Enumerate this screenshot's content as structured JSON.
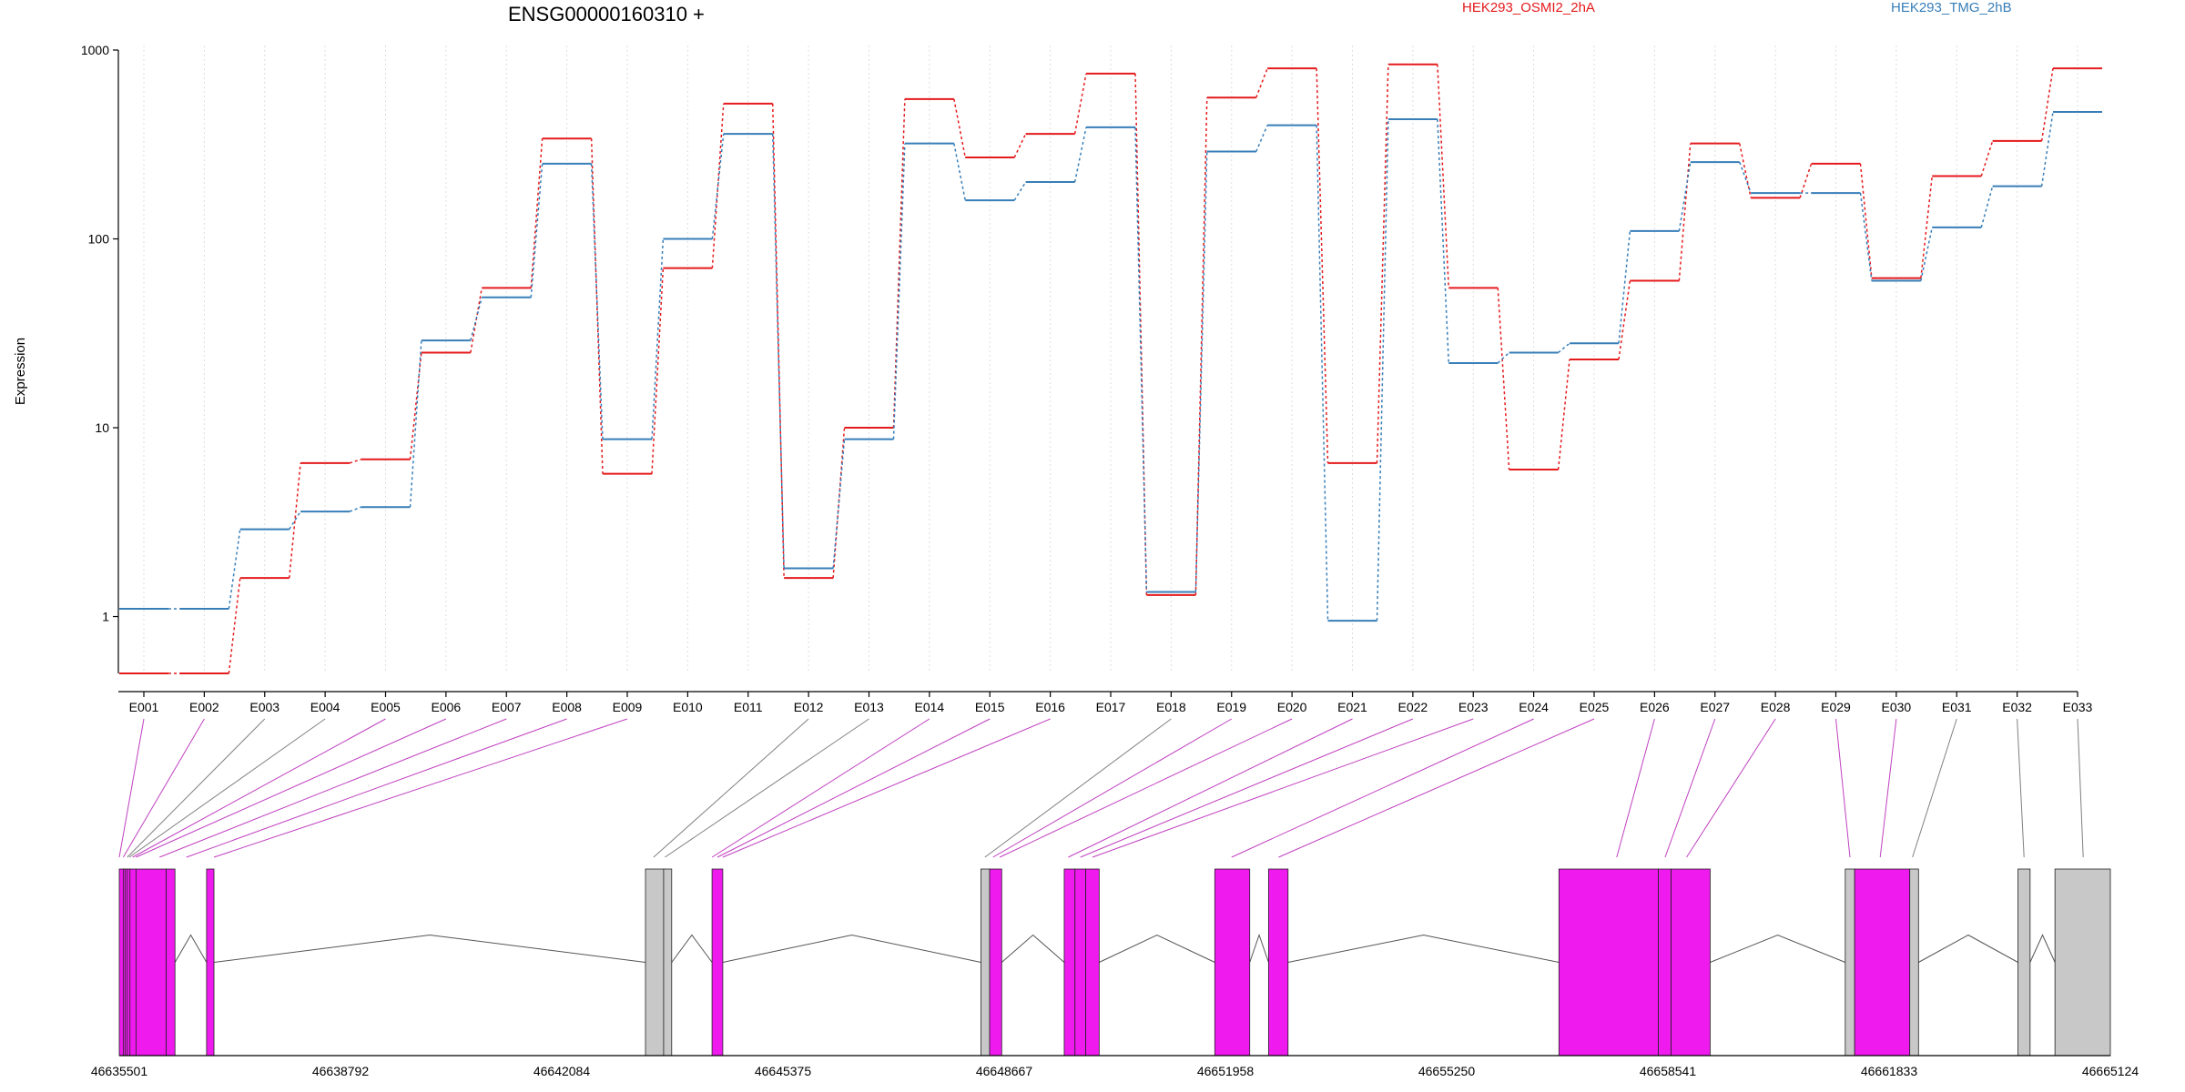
{
  "chart_data": {
    "type": "line",
    "title": "ENSG00000160310 +",
    "ylabel": "Expression",
    "xlabel": "",
    "yscale": "log",
    "ylim": [
      0.5,
      1000
    ],
    "y_ticks": [
      1,
      10,
      100,
      1000
    ],
    "y_tick_labels": [
      "1",
      "10",
      "100",
      "1000"
    ],
    "grid": "vertical dotted",
    "legend_placement": "top",
    "categories": [
      "E001",
      "E002",
      "E003",
      "E004",
      "E005",
      "E006",
      "E007",
      "E008",
      "E009",
      "E010",
      "E011",
      "E012",
      "E013",
      "E014",
      "E015",
      "E016",
      "E017",
      "E018",
      "E019",
      "E020",
      "E021",
      "E022",
      "E023",
      "E024",
      "E025",
      "E026",
      "E027",
      "E028",
      "E029",
      "E030",
      "E031",
      "E032",
      "E033"
    ],
    "series": [
      {
        "name": "HEK293_OSMI2_2hA",
        "color": "#e41a1c",
        "values": [
          0.5,
          0.5,
          1.6,
          6.5,
          6.8,
          25,
          55,
          340,
          5.7,
          70,
          520,
          1.6,
          10,
          550,
          270,
          360,
          750,
          1.3,
          560,
          800,
          6.5,
          840,
          55,
          6,
          23,
          60,
          320,
          165,
          250,
          62,
          215,
          330,
          800
        ]
      },
      {
        "name": "HEK293_TMG_2hB",
        "color": "#377eb8",
        "values": [
          1.1,
          1.1,
          2.9,
          3.6,
          3.8,
          29,
          49,
          250,
          8.7,
          100,
          360,
          1.8,
          8.7,
          320,
          160,
          200,
          390,
          1.35,
          290,
          400,
          0.95,
          430,
          22,
          25,
          28,
          110,
          255,
          175,
          175,
          60,
          115,
          190,
          470
        ]
      }
    ]
  },
  "gene_model": {
    "coordinate_labels": [
      "46635501",
      "46638792",
      "46642084",
      "46645375",
      "46648667",
      "46651958",
      "46655250",
      "46658541",
      "46661833",
      "46665124"
    ],
    "coordinate_range": [
      46635501,
      46665124
    ],
    "colors": {
      "highlighted_exon": "#ee1aee",
      "other_exon": "#c8c8c8",
      "connector_highlight": "#c040c0",
      "connector_plain": "#808080"
    },
    "exons": [
      {
        "start": 46635501,
        "end": 46635750,
        "kind": "highlighted"
      },
      {
        "start": 46635560,
        "end": 46635580,
        "kind": "highlighted"
      },
      {
        "start": 46635620,
        "end": 46635660,
        "kind": "highlighted"
      },
      {
        "start": 46635750,
        "end": 46636200,
        "kind": "highlighted"
      },
      {
        "start": 46636200,
        "end": 46636330,
        "kind": "highlighted"
      },
      {
        "start": 46636800,
        "end": 46636910,
        "kind": "highlighted"
      },
      {
        "start": 46643330,
        "end": 46643600,
        "kind": "other"
      },
      {
        "start": 46643600,
        "end": 46643720,
        "kind": "other"
      },
      {
        "start": 46644320,
        "end": 46644480,
        "kind": "highlighted"
      },
      {
        "start": 46648320,
        "end": 46648450,
        "kind": "other"
      },
      {
        "start": 46648450,
        "end": 46648630,
        "kind": "highlighted"
      },
      {
        "start": 46649560,
        "end": 46649720,
        "kind": "highlighted"
      },
      {
        "start": 46649720,
        "end": 46649880,
        "kind": "highlighted"
      },
      {
        "start": 46649880,
        "end": 46650080,
        "kind": "highlighted"
      },
      {
        "start": 46651800,
        "end": 46652320,
        "kind": "highlighted"
      },
      {
        "start": 46652600,
        "end": 46652890,
        "kind": "highlighted"
      },
      {
        "start": 46656920,
        "end": 46658400,
        "kind": "highlighted"
      },
      {
        "start": 46658400,
        "end": 46658590,
        "kind": "highlighted"
      },
      {
        "start": 46658590,
        "end": 46659170,
        "kind": "highlighted"
      },
      {
        "start": 46661180,
        "end": 46661320,
        "kind": "other"
      },
      {
        "start": 46661320,
        "end": 46662140,
        "kind": "highlighted"
      },
      {
        "start": 46662140,
        "end": 46662270,
        "kind": "other"
      },
      {
        "start": 46663750,
        "end": 46663930,
        "kind": "other"
      },
      {
        "start": 46664300,
        "end": 46665124,
        "kind": "other"
      }
    ],
    "connectors": [
      {
        "exon": "E001",
        "to": 46635501,
        "kind": "highlighted"
      },
      {
        "exon": "E002",
        "to": 46635560,
        "kind": "highlighted"
      },
      {
        "exon": "E003",
        "to": 46635620,
        "kind": "plain"
      },
      {
        "exon": "E004",
        "to": 46635650,
        "kind": "plain"
      },
      {
        "exon": "E005",
        "to": 46635700,
        "kind": "highlighted"
      },
      {
        "exon": "E006",
        "to": 46635750,
        "kind": "highlighted"
      },
      {
        "exon": "E007",
        "to": 46636100,
        "kind": "highlighted"
      },
      {
        "exon": "E008",
        "to": 46636500,
        "kind": "highlighted"
      },
      {
        "exon": "E009",
        "to": 46636910,
        "kind": "highlighted"
      },
      {
        "exon": "E012",
        "to": 46643450,
        "kind": "plain"
      },
      {
        "exon": "E013",
        "to": 46643620,
        "kind": "plain"
      },
      {
        "exon": "E014",
        "to": 46644320,
        "kind": "highlighted"
      },
      {
        "exon": "E015",
        "to": 46644400,
        "kind": "highlighted"
      },
      {
        "exon": "E016",
        "to": 46644480,
        "kind": "highlighted"
      },
      {
        "exon": "E018",
        "to": 46648380,
        "kind": "plain"
      },
      {
        "exon": "E019",
        "to": 46648500,
        "kind": "highlighted"
      },
      {
        "exon": "E020",
        "to": 46648600,
        "kind": "highlighted"
      },
      {
        "exon": "E021",
        "to": 46649620,
        "kind": "highlighted"
      },
      {
        "exon": "E022",
        "to": 46649800,
        "kind": "highlighted"
      },
      {
        "exon": "E023",
        "to": 46649980,
        "kind": "highlighted"
      },
      {
        "exon": "E024",
        "to": 46652050,
        "kind": "highlighted"
      },
      {
        "exon": "E025",
        "to": 46652750,
        "kind": "highlighted"
      },
      {
        "exon": "E026",
        "to": 46657780,
        "kind": "highlighted"
      },
      {
        "exon": "E027",
        "to": 46658500,
        "kind": "highlighted"
      },
      {
        "exon": "E028",
        "to": 46658820,
        "kind": "highlighted"
      },
      {
        "exon": "E029",
        "to": 46661250,
        "kind": "highlighted"
      },
      {
        "exon": "E030",
        "to": 46661700,
        "kind": "highlighted"
      },
      {
        "exon": "E031",
        "to": 46662180,
        "kind": "plain"
      },
      {
        "exon": "E032",
        "to": 46663840,
        "kind": "plain"
      },
      {
        "exon": "E033",
        "to": 46664720,
        "kind": "plain"
      }
    ]
  }
}
